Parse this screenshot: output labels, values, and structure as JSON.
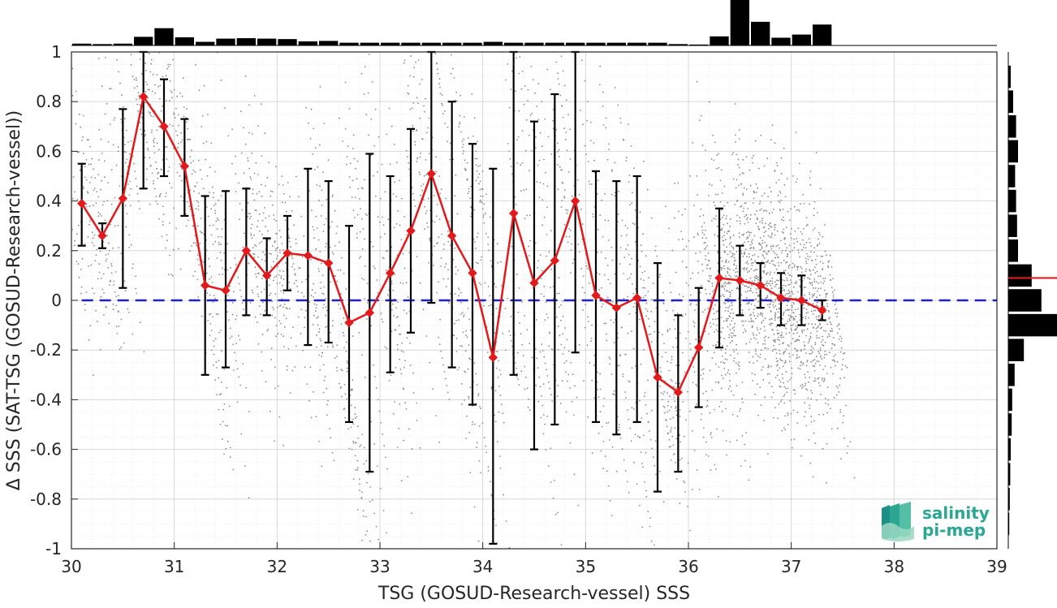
{
  "chart_data": {
    "type": "scatter",
    "xlabel": "TSG (GOSUD-Research-vessel) SSS",
    "ylabel": "Δ SSS (SAT-TSG (GOSUD-Research-vessel))",
    "xlim": [
      30,
      39
    ],
    "ylim": [
      -1,
      1
    ],
    "xticks": [
      30,
      31,
      32,
      33,
      34,
      35,
      36,
      37,
      38,
      39
    ],
    "yticks": [
      -1,
      -0.8,
      -0.6,
      -0.4,
      -0.2,
      0,
      0.2,
      0.4,
      0.6,
      0.8,
      1
    ],
    "grid": true,
    "reference_line": {
      "y": 0,
      "color": "#1f1fd6",
      "style": "dashed"
    },
    "binned_mean": {
      "color": "#e31a1c",
      "marker": "diamond",
      "x": [
        30.1,
        30.3,
        30.5,
        30.7,
        30.9,
        31.1,
        31.3,
        31.5,
        31.7,
        31.9,
        32.1,
        32.3,
        32.5,
        32.7,
        32.9,
        33.1,
        33.3,
        33.5,
        33.7,
        33.9,
        34.1,
        34.3,
        34.5,
        34.7,
        34.9,
        35.1,
        35.3,
        35.5,
        35.7,
        35.9,
        36.1,
        36.3,
        36.5,
        36.7,
        36.9,
        37.1,
        37.3
      ],
      "y": [
        0.39,
        0.26,
        0.41,
        0.82,
        0.7,
        0.54,
        0.06,
        0.04,
        0.2,
        0.1,
        0.19,
        0.18,
        0.15,
        -0.09,
        -0.05,
        0.11,
        0.28,
        0.51,
        0.26,
        0.11,
        -0.23,
        0.35,
        0.07,
        0.16,
        0.4,
        0.02,
        -0.03,
        0.01,
        -0.31,
        -0.37,
        -0.19,
        0.09,
        0.08,
        0.06,
        0.01,
        0.0,
        -0.04
      ],
      "lo": [
        0.22,
        0.21,
        0.05,
        0.45,
        0.5,
        0.34,
        -0.3,
        -0.27,
        -0.06,
        -0.06,
        0.04,
        -0.18,
        -0.17,
        -0.49,
        -0.69,
        -0.29,
        -0.13,
        -0.01,
        -0.27,
        -0.42,
        -0.98,
        -0.3,
        -0.6,
        -0.5,
        -0.21,
        -0.49,
        -0.54,
        -0.49,
        -0.77,
        -0.69,
        -0.43,
        -0.19,
        -0.06,
        -0.03,
        -0.1,
        -0.1,
        -0.08
      ],
      "hi": [
        0.55,
        0.31,
        0.77,
        1.0,
        0.89,
        0.73,
        0.42,
        0.44,
        0.45,
        0.25,
        0.34,
        0.53,
        0.48,
        0.3,
        0.59,
        0.5,
        0.69,
        1.0,
        0.8,
        0.63,
        0.53,
        1.0,
        0.72,
        0.83,
        1.0,
        0.52,
        0.48,
        0.5,
        0.15,
        -0.06,
        0.05,
        0.37,
        0.22,
        0.15,
        0.11,
        0.1,
        0.0
      ]
    },
    "scatter_color": "#8a8a8a",
    "top_histogram": {
      "bin_centers": [
        30.1,
        30.3,
        30.5,
        30.7,
        30.9,
        31.1,
        31.3,
        31.5,
        31.7,
        31.9,
        32.1,
        32.3,
        32.5,
        32.7,
        32.9,
        33.1,
        33.3,
        33.5,
        33.7,
        33.9,
        34.1,
        34.3,
        34.5,
        34.7,
        34.9,
        35.1,
        35.3,
        35.5,
        35.7,
        35.9,
        36.1,
        36.3,
        36.5,
        36.7,
        36.9,
        37.1,
        37.3
      ],
      "relative_counts": [
        0.04,
        0.03,
        0.04,
        0.19,
        0.38,
        0.18,
        0.08,
        0.15,
        0.16,
        0.15,
        0.14,
        0.09,
        0.1,
        0.06,
        0.06,
        0.06,
        0.06,
        0.06,
        0.06,
        0.06,
        0.08,
        0.06,
        0.06,
        0.06,
        0.06,
        0.06,
        0.06,
        0.06,
        0.06,
        0.03,
        0.02,
        0.2,
        1.0,
        0.52,
        0.17,
        0.24,
        0.46
      ]
    },
    "right_histogram": {
      "bin_centers": [
        0.9,
        0.8,
        0.7,
        0.6,
        0.5,
        0.4,
        0.3,
        0.2,
        0.1,
        0.0,
        -0.1,
        -0.2,
        -0.3,
        -0.4,
        -0.5,
        -0.6,
        -0.7,
        -0.8,
        -0.9
      ],
      "relative_counts": [
        0.05,
        0.1,
        0.16,
        0.2,
        0.14,
        0.16,
        0.18,
        0.2,
        0.48,
        0.68,
        1.0,
        0.32,
        0.13,
        0.08,
        0.07,
        0.05,
        0.04,
        0.03,
        0.02
      ],
      "mean_marker": {
        "y": 0.09,
        "color": "#e31a1c"
      }
    }
  },
  "logo": {
    "line1": "salinity",
    "line2": "pi-mep",
    "color": "#2aa693"
  }
}
